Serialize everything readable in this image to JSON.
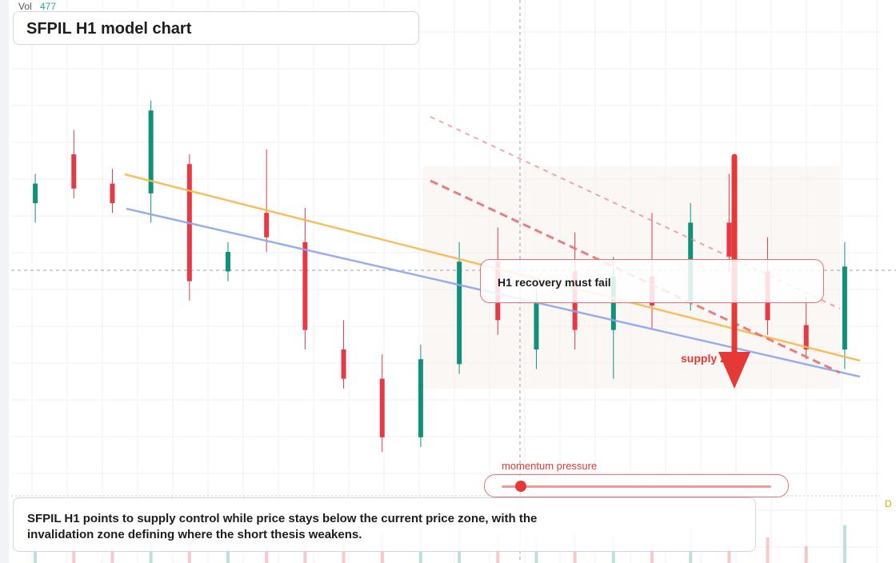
{
  "chart_data": {
    "type": "candlestick",
    "title": "SFPIL H1 model chart",
    "volume_label": "Vol",
    "volume_value": "477",
    "ylim": [
      0,
      100
    ],
    "up_color": "#12917a",
    "down_color": "#e53945",
    "candles": [
      {
        "o": 60,
        "h": 66,
        "l": 56,
        "c": 64
      },
      {
        "o": 70,
        "h": 75,
        "l": 61,
        "c": 63
      },
      {
        "o": 64,
        "h": 67,
        "l": 58,
        "c": 60
      },
      {
        "o": 62,
        "h": 81,
        "l": 56,
        "c": 79
      },
      {
        "o": 68,
        "h": 70,
        "l": 40,
        "c": 44
      },
      {
        "o": 46,
        "h": 52,
        "l": 44,
        "c": 50
      },
      {
        "o": 58,
        "h": 71,
        "l": 50,
        "c": 53
      },
      {
        "o": 52,
        "h": 59,
        "l": 30,
        "c": 34
      },
      {
        "o": 30,
        "h": 36,
        "l": 22,
        "c": 24
      },
      {
        "o": 24,
        "h": 29,
        "l": 9,
        "c": 12
      },
      {
        "o": 12,
        "h": 31,
        "l": 10,
        "c": 28
      },
      {
        "o": 27,
        "h": 52,
        "l": 25,
        "c": 48
      },
      {
        "o": 48,
        "h": 55,
        "l": 33,
        "c": 36
      },
      {
        "o": 30,
        "h": 42,
        "l": 26,
        "c": 40
      },
      {
        "o": 46,
        "h": 54,
        "l": 30,
        "c": 34
      },
      {
        "o": 34,
        "h": 49,
        "l": 24,
        "c": 45
      },
      {
        "o": 45,
        "h": 58,
        "l": 34,
        "c": 39
      },
      {
        "o": 40,
        "h": 60,
        "l": 38,
        "c": 56
      },
      {
        "o": 56,
        "h": 66,
        "l": 46,
        "c": 49
      },
      {
        "o": 46,
        "h": 53,
        "l": 33,
        "c": 36
      },
      {
        "o": 35,
        "h": 41,
        "l": 28,
        "c": 30
      },
      {
        "o": 30,
        "h": 52,
        "l": 26,
        "c": 47
      }
    ]
  },
  "callout": {
    "text": "H1 recovery must fail"
  },
  "supply_label": {
    "text": "supply zone"
  },
  "momentum": {
    "label": "momentum pressure",
    "level": 0.07
  },
  "summary": {
    "text": "SFPIL H1 points to supply control while price stays below the current price zone, with the invalidation zone defining where the short thesis weakens."
  },
  "edge_label": {
    "text": "D"
  },
  "colors": {
    "trend_orange": "#f6b94f",
    "trend_blue": "#8fa6ee",
    "dash_red": "#e57373",
    "accent_red": "#e53935",
    "zone_fill": "#f7f1ec"
  }
}
